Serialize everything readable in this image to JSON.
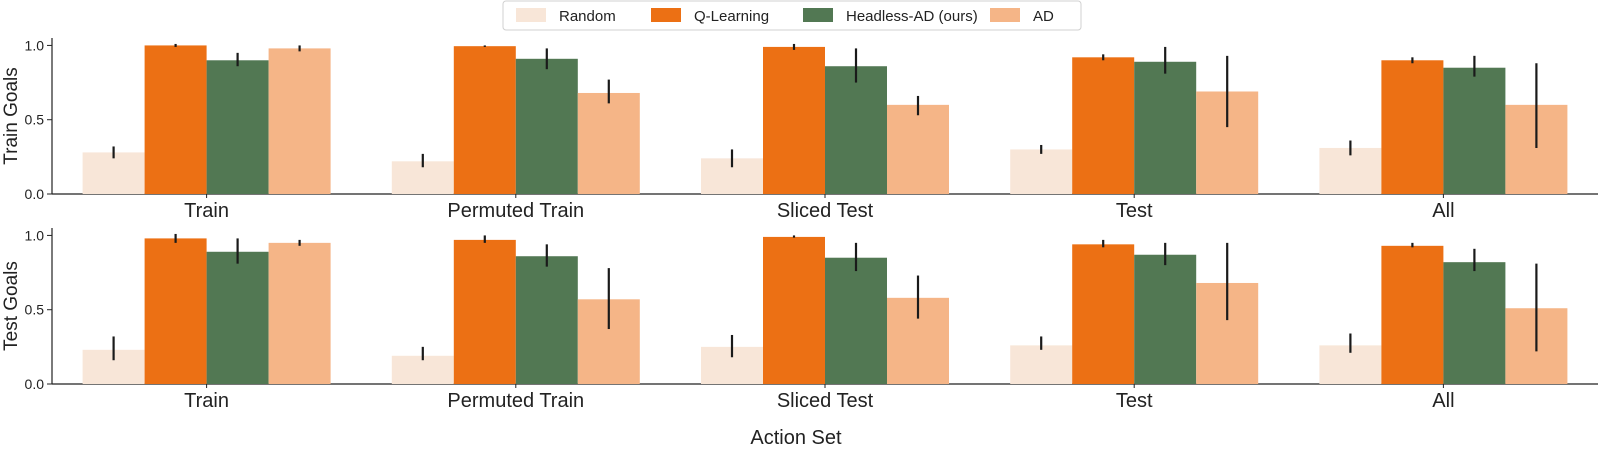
{
  "chart_data": {
    "type": "bar",
    "xlabel": "Action Set",
    "legend": {
      "placement": "top-center",
      "entries": [
        "Random",
        "Q-Learning",
        "Headless-AD (ours)",
        "AD"
      ]
    },
    "colors": {
      "Random": "#f8e6d8",
      "Q-Learning": "#ec7014",
      "Headless-AD (ours)": "#527853",
      "AD": "#f5b587"
    },
    "panels": [
      {
        "ylabel": "Train Goals",
        "ylim": [
          0,
          1.05
        ],
        "yticks": [
          "0.0",
          "0.5",
          "1.0"
        ],
        "categories": [
          "Train",
          "Permuted Train",
          "Sliced Test",
          "Test",
          "All"
        ],
        "series": [
          {
            "name": "Random",
            "values": [
              0.28,
              0.22,
              0.24,
              0.3,
              0.31
            ],
            "err_low": [
              0.24,
              0.18,
              0.18,
              0.27,
              0.26
            ],
            "err_high": [
              0.32,
              0.27,
              0.3,
              0.33,
              0.36
            ]
          },
          {
            "name": "Q-Learning",
            "values": [
              1.0,
              0.995,
              0.99,
              0.92,
              0.9
            ],
            "err_low": [
              0.99,
              0.99,
              0.97,
              0.9,
              0.88
            ],
            "err_high": [
              1.01,
              1.0,
              1.01,
              0.94,
              0.92
            ]
          },
          {
            "name": "Headless-AD (ours)",
            "values": [
              0.9,
              0.91,
              0.86,
              0.89,
              0.85
            ],
            "err_low": [
              0.86,
              0.84,
              0.75,
              0.81,
              0.79
            ],
            "err_high": [
              0.95,
              0.98,
              0.98,
              0.99,
              0.93
            ]
          },
          {
            "name": "AD",
            "values": [
              0.98,
              0.68,
              0.6,
              0.69,
              0.6
            ],
            "err_low": [
              0.96,
              0.61,
              0.53,
              0.45,
              0.31
            ],
            "err_high": [
              1.0,
              0.77,
              0.66,
              0.93,
              0.88
            ]
          }
        ]
      },
      {
        "ylabel": "Test Goals",
        "ylim": [
          0,
          1.05
        ],
        "yticks": [
          "0.0",
          "0.5",
          "1.0"
        ],
        "categories": [
          "Train",
          "Permuted Train",
          "Sliced Test",
          "Test",
          "All"
        ],
        "series": [
          {
            "name": "Random",
            "values": [
              0.23,
              0.19,
              0.25,
              0.26,
              0.26
            ],
            "err_low": [
              0.16,
              0.16,
              0.18,
              0.23,
              0.21
            ],
            "err_high": [
              0.32,
              0.25,
              0.33,
              0.32,
              0.34
            ]
          },
          {
            "name": "Q-Learning",
            "values": [
              0.98,
              0.97,
              0.99,
              0.94,
              0.93
            ],
            "err_low": [
              0.95,
              0.95,
              0.985,
              0.92,
              0.92
            ],
            "err_high": [
              1.01,
              1.0,
              1.0,
              0.97,
              0.95
            ]
          },
          {
            "name": "Headless-AD (ours)",
            "values": [
              0.89,
              0.86,
              0.85,
              0.87,
              0.82
            ],
            "err_low": [
              0.81,
              0.79,
              0.76,
              0.8,
              0.76
            ],
            "err_high": [
              0.98,
              0.94,
              0.95,
              0.95,
              0.91
            ]
          },
          {
            "name": "AD",
            "values": [
              0.95,
              0.57,
              0.58,
              0.68,
              0.51
            ],
            "err_low": [
              0.93,
              0.37,
              0.44,
              0.43,
              0.22
            ],
            "err_high": [
              0.97,
              0.78,
              0.73,
              0.95,
              0.81
            ]
          }
        ]
      }
    ]
  }
}
